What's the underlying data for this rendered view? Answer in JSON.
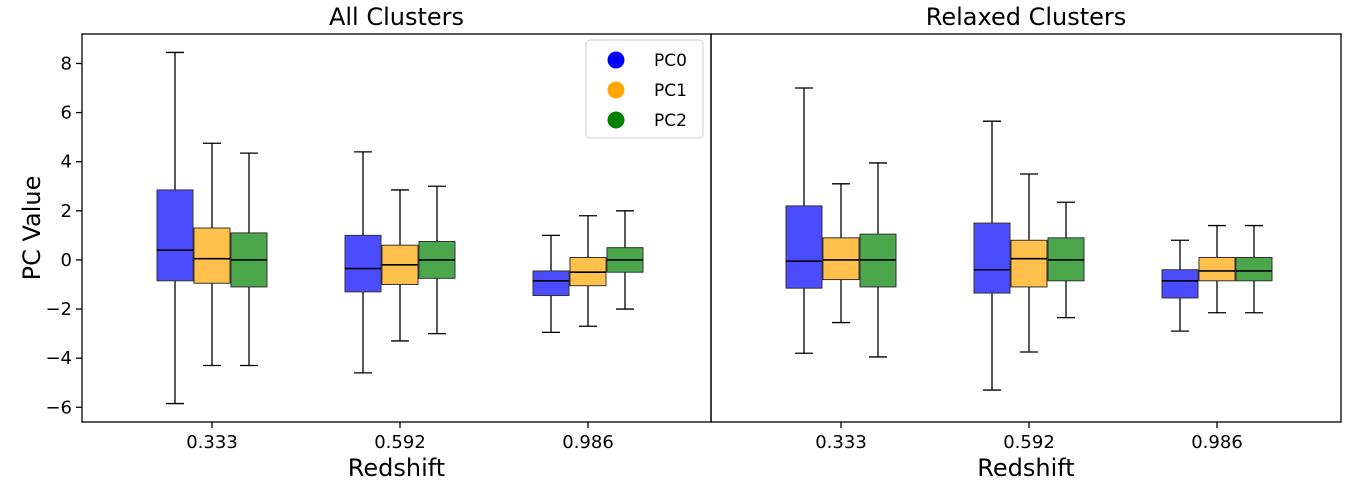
{
  "chart_data": {
    "type": "boxplot",
    "ylabel": "PC Value",
    "ylim": [
      -6.6,
      9.2
    ],
    "yticks": [
      -6,
      -4,
      -2,
      0,
      2,
      4,
      6,
      8
    ],
    "ytick_labels": [
      "−6",
      "−4",
      "−2",
      "0",
      "2",
      "4",
      "6",
      "8"
    ],
    "legend": {
      "placement": "upper-right of first panel",
      "entries": [
        {
          "label": "PC0",
          "color": "#0000FF"
        },
        {
          "label": "PC1",
          "color": "#FFA500"
        },
        {
          "label": "PC2",
          "color": "#008000"
        }
      ]
    },
    "series_colors": {
      "PC0": "#0000FF",
      "PC1": "#FFA500",
      "PC2": "#008000"
    },
    "panels": [
      {
        "title": "All Clusters",
        "xlabel": "Redshift",
        "categories": [
          "0.333",
          "0.592",
          "0.986"
        ],
        "series": [
          {
            "name": "PC0",
            "boxes": [
              {
                "whislo": -5.85,
                "q1": -0.85,
                "med": 0.4,
                "q3": 2.85,
                "whishi": 8.45
              },
              {
                "whislo": -4.6,
                "q1": -1.3,
                "med": -0.35,
                "q3": 1.0,
                "whishi": 4.4
              },
              {
                "whislo": -2.95,
                "q1": -1.45,
                "med": -0.85,
                "q3": -0.45,
                "whishi": 1.0
              }
            ]
          },
          {
            "name": "PC1",
            "boxes": [
              {
                "whislo": -4.3,
                "q1": -0.95,
                "med": 0.05,
                "q3": 1.3,
                "whishi": 4.75
              },
              {
                "whislo": -3.3,
                "q1": -1.0,
                "med": -0.2,
                "q3": 0.6,
                "whishi": 2.85
              },
              {
                "whislo": -2.7,
                "q1": -1.05,
                "med": -0.5,
                "q3": 0.1,
                "whishi": 1.8
              }
            ]
          },
          {
            "name": "PC2",
            "boxes": [
              {
                "whislo": -4.3,
                "q1": -1.1,
                "med": 0.0,
                "q3": 1.1,
                "whishi": 4.35
              },
              {
                "whislo": -3.0,
                "q1": -0.75,
                "med": 0.0,
                "q3": 0.75,
                "whishi": 3.0
              },
              {
                "whislo": -2.0,
                "q1": -0.5,
                "med": 0.0,
                "q3": 0.5,
                "whishi": 2.0
              }
            ]
          }
        ]
      },
      {
        "title": "Relaxed Clusters",
        "xlabel": "Redshift",
        "categories": [
          "0.333",
          "0.592",
          "0.986"
        ],
        "series": [
          {
            "name": "PC0",
            "boxes": [
              {
                "whislo": -3.8,
                "q1": -1.15,
                "med": -0.05,
                "q3": 2.2,
                "whishi": 7.0
              },
              {
                "whislo": -5.3,
                "q1": -1.35,
                "med": -0.4,
                "q3": 1.5,
                "whishi": 5.65
              },
              {
                "whislo": -2.9,
                "q1": -1.55,
                "med": -0.85,
                "q3": -0.4,
                "whishi": 0.8
              }
            ]
          },
          {
            "name": "PC1",
            "boxes": [
              {
                "whislo": -2.55,
                "q1": -0.8,
                "med": 0.0,
                "q3": 0.9,
                "whishi": 3.1
              },
              {
                "whislo": -3.75,
                "q1": -1.1,
                "med": 0.05,
                "q3": 0.8,
                "whishi": 3.5
              },
              {
                "whislo": -2.15,
                "q1": -0.85,
                "med": -0.45,
                "q3": 0.1,
                "whishi": 1.4
              }
            ]
          },
          {
            "name": "PC2",
            "boxes": [
              {
                "whislo": -3.95,
                "q1": -1.1,
                "med": 0.0,
                "q3": 1.05,
                "whishi": 3.95
              },
              {
                "whislo": -2.35,
                "q1": -0.85,
                "med": 0.0,
                "q3": 0.9,
                "whishi": 2.35
              },
              {
                "whislo": -2.15,
                "q1": -0.85,
                "med": -0.45,
                "q3": 0.1,
                "whishi": 1.4
              }
            ]
          }
        ]
      }
    ]
  }
}
